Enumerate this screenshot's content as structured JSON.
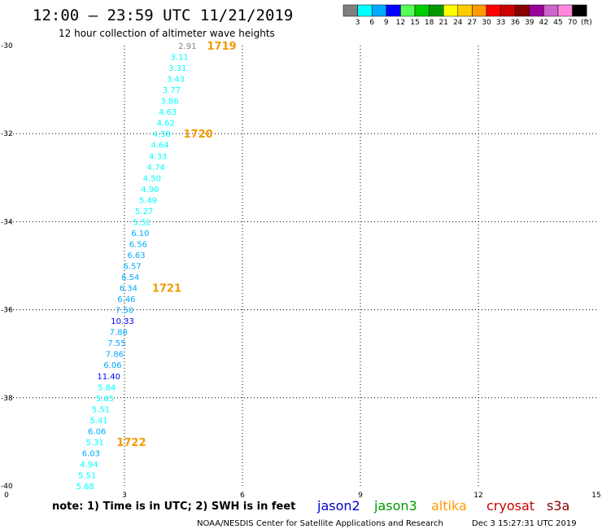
{
  "header": {
    "title": "12:00 – 23:59 UTC 11/21/2019",
    "subtitle": "12 hour collection of altimeter wave heights"
  },
  "colorbar": {
    "colors": [
      "#808080",
      "#00ffff",
      "#00aaff",
      "#0000ff",
      "#55ff55",
      "#00cc00",
      "#009900",
      "#ffff00",
      "#ffcc00",
      "#ff9900",
      "#ff0000",
      "#cc0000",
      "#880000",
      "#990099",
      "#cc66cc",
      "#ff88dd",
      "#000000"
    ],
    "labels": [
      "3",
      "6",
      "9",
      "12",
      "15",
      "18",
      "21",
      "24",
      "27",
      "30",
      "33",
      "36",
      "39",
      "42",
      "45",
      "70"
    ],
    "unit": "(ft)"
  },
  "chart_data": {
    "type": "scatter",
    "title": "12:00 – 23:59 UTC 11/21/2019",
    "subtitle": "12 hour collection of altimeter wave heights",
    "xlim": [
      0,
      15
    ],
    "ylim": [
      -40,
      -30
    ],
    "x_ticks": [
      "0",
      "3",
      "6",
      "9",
      "12",
      "15"
    ],
    "y_ticks": [
      "-30",
      "-32",
      "-34",
      "-36",
      "-38",
      "-40"
    ],
    "grid": true,
    "points": [
      {
        "lon": 4.6,
        "lat": -30.0,
        "swh": "2.91",
        "color": "#808080"
      },
      {
        "lon": 4.4,
        "lat": -30.25,
        "swh": "3.11",
        "color": "#00ffff"
      },
      {
        "lon": 4.35,
        "lat": -30.5,
        "swh": "3.31",
        "color": "#00ffff"
      },
      {
        "lon": 4.3,
        "lat": -30.75,
        "swh": "3.43",
        "color": "#00ffff"
      },
      {
        "lon": 4.2,
        "lat": -31.0,
        "swh": "3.77",
        "color": "#00ffff"
      },
      {
        "lon": 4.15,
        "lat": -31.25,
        "swh": "3.86",
        "color": "#00ffff"
      },
      {
        "lon": 4.1,
        "lat": -31.5,
        "swh": "4.63",
        "color": "#00ffff"
      },
      {
        "lon": 4.05,
        "lat": -31.75,
        "swh": "4.62",
        "color": "#00ffff"
      },
      {
        "lon": 3.95,
        "lat": -32.0,
        "swh": "4.58",
        "color": "#00ffff"
      },
      {
        "lon": 3.9,
        "lat": -32.25,
        "swh": "4.64",
        "color": "#00ffff"
      },
      {
        "lon": 3.85,
        "lat": -32.5,
        "swh": "4.33",
        "color": "#00ffff"
      },
      {
        "lon": 3.8,
        "lat": -32.75,
        "swh": "4.74",
        "color": "#00ffff"
      },
      {
        "lon": 3.7,
        "lat": -33.0,
        "swh": "4.50",
        "color": "#00ffff"
      },
      {
        "lon": 3.65,
        "lat": -33.25,
        "swh": "4.90",
        "color": "#00ffff"
      },
      {
        "lon": 3.6,
        "lat": -33.5,
        "swh": "5.49",
        "color": "#00ffff"
      },
      {
        "lon": 3.5,
        "lat": -33.75,
        "swh": "5.27",
        "color": "#00ffff"
      },
      {
        "lon": 3.45,
        "lat": -34.0,
        "swh": "5.52",
        "color": "#00ffff"
      },
      {
        "lon": 3.4,
        "lat": -34.25,
        "swh": "6.10",
        "color": "#00aaff"
      },
      {
        "lon": 3.35,
        "lat": -34.5,
        "swh": "6.56",
        "color": "#00aaff"
      },
      {
        "lon": 3.3,
        "lat": -34.75,
        "swh": "6.63",
        "color": "#00aaff"
      },
      {
        "lon": 3.2,
        "lat": -35.0,
        "swh": "6.57",
        "color": "#00aaff"
      },
      {
        "lon": 3.15,
        "lat": -35.25,
        "swh": "6.54",
        "color": "#00aaff"
      },
      {
        "lon": 3.1,
        "lat": -35.5,
        "swh": "6.34",
        "color": "#00aaff"
      },
      {
        "lon": 3.05,
        "lat": -35.75,
        "swh": "6.46",
        "color": "#00aaff"
      },
      {
        "lon": 3.0,
        "lat": -36.0,
        "swh": "7.50",
        "color": "#00aaff"
      },
      {
        "lon": 2.95,
        "lat": -36.25,
        "swh": "10.33",
        "color": "#0000ff"
      },
      {
        "lon": 2.85,
        "lat": -36.5,
        "swh": "7.88",
        "color": "#00aaff"
      },
      {
        "lon": 2.8,
        "lat": -36.75,
        "swh": "7.55",
        "color": "#00aaff"
      },
      {
        "lon": 2.75,
        "lat": -37.0,
        "swh": "7.86",
        "color": "#00aaff"
      },
      {
        "lon": 2.7,
        "lat": -37.25,
        "swh": "6.06",
        "color": "#00aaff"
      },
      {
        "lon": 2.6,
        "lat": -37.5,
        "swh": "11.40",
        "color": "#0000ff"
      },
      {
        "lon": 2.55,
        "lat": -37.75,
        "swh": "5.84",
        "color": "#00ffff"
      },
      {
        "lon": 2.5,
        "lat": -38.0,
        "swh": "5.65",
        "color": "#00ffff"
      },
      {
        "lon": 2.4,
        "lat": -38.25,
        "swh": "5.51",
        "color": "#00ffff"
      },
      {
        "lon": 2.35,
        "lat": -38.5,
        "swh": "5.41",
        "color": "#00ffff"
      },
      {
        "lon": 2.3,
        "lat": -38.75,
        "swh": "6.06",
        "color": "#00aaff"
      },
      {
        "lon": 2.25,
        "lat": -39.0,
        "swh": "5.31",
        "color": "#00ffff"
      },
      {
        "lon": 2.15,
        "lat": -39.25,
        "swh": "6.03",
        "color": "#00aaff"
      },
      {
        "lon": 2.1,
        "lat": -39.5,
        "swh": "4.94",
        "color": "#00ffff"
      },
      {
        "lon": 2.05,
        "lat": -39.75,
        "swh": "5.51",
        "color": "#00ffff"
      },
      {
        "lon": 2.0,
        "lat": -40.0,
        "swh": "5.68",
        "color": "#00ffff"
      }
    ],
    "time_marks": [
      {
        "lon": 5.1,
        "lat": -30.0,
        "label": "1719"
      },
      {
        "lon": 4.5,
        "lat": -32.0,
        "label": "1720"
      },
      {
        "lon": 3.7,
        "lat": -35.5,
        "label": "1721"
      },
      {
        "lon": 2.8,
        "lat": -39.0,
        "label": "1722"
      }
    ]
  },
  "note": "note:  1) Time is in UTC;  2) SWH is in feet",
  "satellites": [
    {
      "name": "jason2",
      "color": "#0000cc"
    },
    {
      "name": "jason3",
      "color": "#009900"
    },
    {
      "name": "altika",
      "color": "#ff9900"
    },
    {
      "name": "cryosat",
      "color": "#cc0000"
    },
    {
      "name": "s3a",
      "color": "#880000"
    }
  ],
  "footer": {
    "credit": "NOAA/NESDIS Center for Satellite Applications and Research",
    "timestamp": "Dec  3 15:27:31 UTC 2019"
  }
}
